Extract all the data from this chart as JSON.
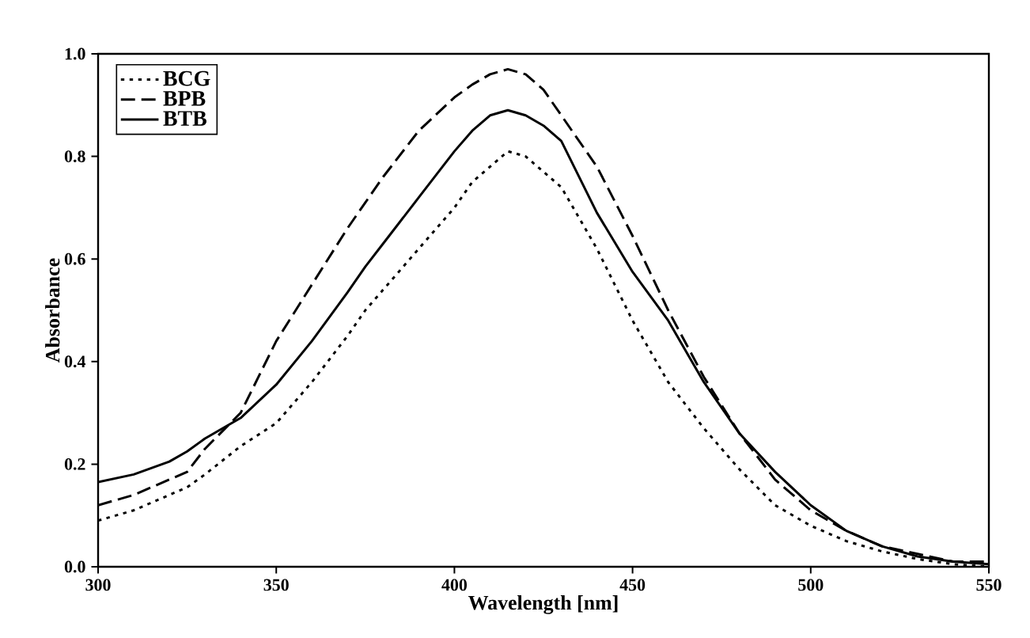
{
  "chart_data": {
    "type": "line",
    "xlabel": "Wavelength [nm]",
    "ylabel": "Absorbance",
    "x": [
      300,
      310,
      320,
      325,
      330,
      340,
      350,
      360,
      370,
      375,
      380,
      390,
      400,
      405,
      410,
      415,
      420,
      425,
      430,
      440,
      450,
      460,
      470,
      480,
      490,
      500,
      510,
      520,
      530,
      540,
      550
    ],
    "series": [
      {
        "name": "BCG",
        "color": "#000000",
        "line_style": "dotted",
        "values": [
          0.09,
          0.11,
          0.14,
          0.155,
          0.18,
          0.235,
          0.28,
          0.36,
          0.45,
          0.5,
          0.54,
          0.62,
          0.7,
          0.75,
          0.78,
          0.81,
          0.8,
          0.77,
          0.74,
          0.62,
          0.48,
          0.36,
          0.27,
          0.19,
          0.12,
          0.08,
          0.05,
          0.03,
          0.015,
          0.005,
          0.0
        ]
      },
      {
        "name": "BPB",
        "color": "#000000",
        "line_style": "dashed",
        "values": [
          0.12,
          0.14,
          0.17,
          0.185,
          0.23,
          0.3,
          0.44,
          0.55,
          0.66,
          0.71,
          0.76,
          0.85,
          0.915,
          0.94,
          0.96,
          0.97,
          0.96,
          0.93,
          0.88,
          0.78,
          0.645,
          0.5,
          0.37,
          0.26,
          0.17,
          0.11,
          0.07,
          0.04,
          0.025,
          0.01,
          0.01
        ]
      },
      {
        "name": "BTB",
        "color": "#000000",
        "line_style": "solid",
        "values": [
          0.165,
          0.18,
          0.205,
          0.225,
          0.25,
          0.29,
          0.355,
          0.44,
          0.535,
          0.585,
          0.63,
          0.72,
          0.81,
          0.85,
          0.88,
          0.89,
          0.88,
          0.86,
          0.83,
          0.69,
          0.575,
          0.48,
          0.36,
          0.26,
          0.185,
          0.12,
          0.07,
          0.04,
          0.02,
          0.01,
          0.005
        ]
      }
    ],
    "xlim": [
      300,
      550
    ],
    "ylim": [
      0,
      1.0
    ],
    "xticks": [
      300,
      350,
      400,
      450,
      500,
      550
    ],
    "yticks": [
      {
        "value": 0,
        "label": "0.0"
      },
      {
        "value": 0.2,
        "label": "0.2"
      },
      {
        "value": 0.4,
        "label": "0.4"
      },
      {
        "value": 0.6,
        "label": "0.6"
      },
      {
        "value": 0.8,
        "label": "0.8"
      },
      {
        "value": 1.0,
        "label": "1.0"
      }
    ],
    "legend": "top left"
  }
}
